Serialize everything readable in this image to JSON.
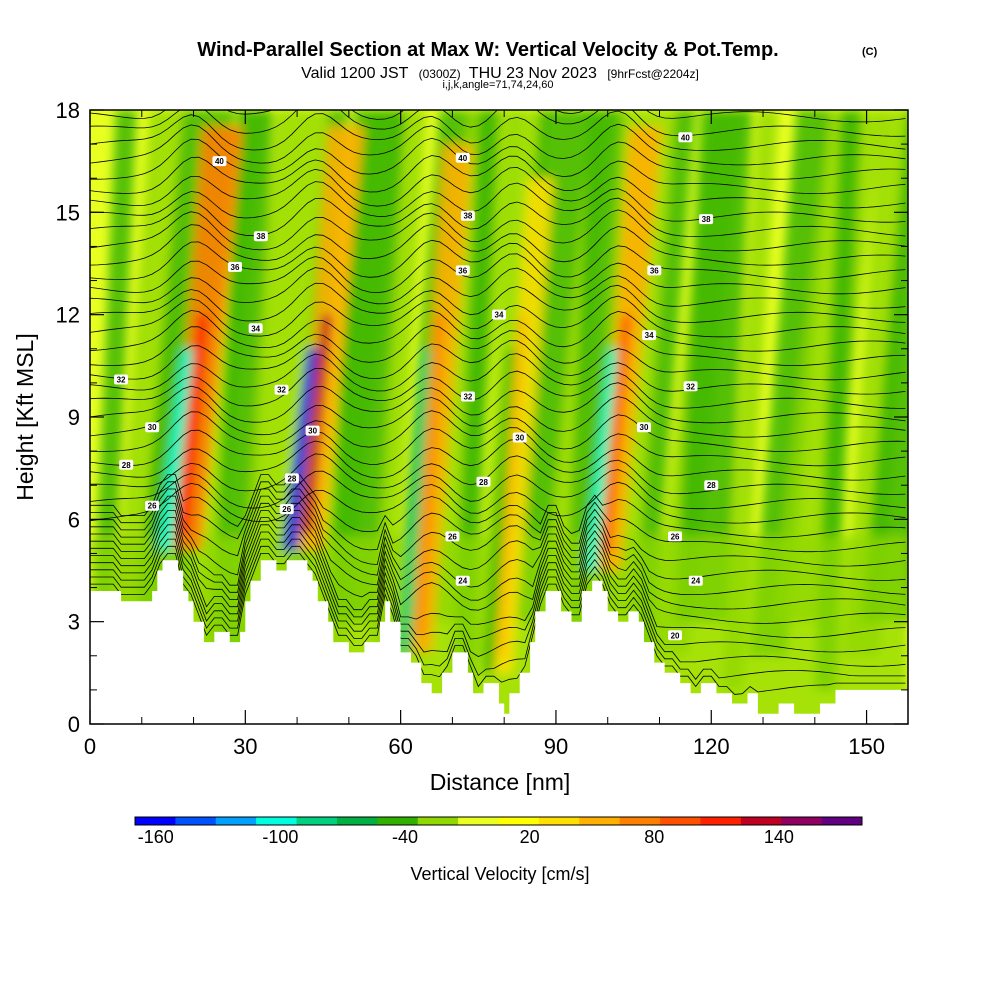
{
  "chart_data": {
    "type": "heatmap",
    "title": "Wind-Parallel Section at Max W: Vertical Velocity & Pot.Temp.",
    "title_mark": "(C)",
    "subtitle_parts": [
      "Valid 1200 JST",
      "(0300Z)",
      "THU 23 Nov 2023",
      "[9hrFcst@2204z]"
    ],
    "subtitle2": "i,j,k,angle=71,74,24,60",
    "xlabel": "Distance [nm]",
    "ylabel": "Height [Kft MSL]",
    "xlim": [
      0,
      158
    ],
    "ylim": [
      0,
      18
    ],
    "x_ticks": [
      "0",
      "30",
      "60",
      "90",
      "120",
      "150"
    ],
    "y_ticks": [
      "0",
      "3",
      "6",
      "9",
      "12",
      "15",
      "18"
    ],
    "x_tick_values": [
      0,
      30,
      60,
      90,
      120,
      150
    ],
    "y_tick_values": [
      0,
      3,
      6,
      9,
      12,
      15,
      18
    ],
    "colorbar": {
      "label": "Vertical Velocity [cm/s]",
      "tick_labels": [
        "-160",
        "-100",
        "-40",
        "20",
        "80",
        "140"
      ],
      "tick_values": [
        -160,
        -100,
        -40,
        20,
        80,
        140
      ],
      "range": [
        -170,
        180
      ],
      "colors": [
        "#0000ff",
        "#0050ff",
        "#00a0ff",
        "#00ffe0",
        "#00d080",
        "#00b040",
        "#30b000",
        "#90d800",
        "#e8ff20",
        "#ffff00",
        "#ffe000",
        "#ffb000",
        "#ff8000",
        "#ff5000",
        "#ff2000",
        "#c00020",
        "#900060",
        "#600080"
      ]
    },
    "terrain": [
      [
        0,
        3.9
      ],
      [
        6,
        3.9
      ],
      [
        6,
        3.6
      ],
      [
        12,
        3.6
      ],
      [
        12,
        3.9
      ],
      [
        13,
        3.9
      ],
      [
        13,
        4.5
      ],
      [
        14,
        4.5
      ],
      [
        14,
        4.8
      ],
      [
        17,
        4.8
      ],
      [
        17,
        4.5
      ],
      [
        18,
        4.5
      ],
      [
        18,
        3.9
      ],
      [
        19,
        3.9
      ],
      [
        19,
        3.6
      ],
      [
        20,
        3.6
      ],
      [
        20,
        3.0
      ],
      [
        22,
        3.0
      ],
      [
        22,
        2.4
      ],
      [
        24,
        2.4
      ],
      [
        24,
        2.7
      ],
      [
        27,
        2.7
      ],
      [
        27,
        2.4
      ],
      [
        29,
        2.4
      ],
      [
        29,
        2.7
      ],
      [
        30,
        2.7
      ],
      [
        30,
        3.6
      ],
      [
        31,
        3.6
      ],
      [
        31,
        4.2
      ],
      [
        33,
        4.2
      ],
      [
        33,
        4.8
      ],
      [
        36,
        4.8
      ],
      [
        36,
        4.5
      ],
      [
        38,
        4.5
      ],
      [
        38,
        4.8
      ],
      [
        42,
        4.8
      ],
      [
        42,
        4.5
      ],
      [
        43,
        4.5
      ],
      [
        43,
        4.2
      ],
      [
        44,
        4.2
      ],
      [
        44,
        3.6
      ],
      [
        46,
        3.6
      ],
      [
        46,
        3.0
      ],
      [
        47,
        3.0
      ],
      [
        47,
        2.4
      ],
      [
        50,
        2.4
      ],
      [
        50,
        2.1
      ],
      [
        53,
        2.1
      ],
      [
        53,
        2.4
      ],
      [
        56,
        2.4
      ],
      [
        56,
        3.0
      ],
      [
        57,
        3.0
      ],
      [
        57,
        3.6
      ],
      [
        58,
        3.6
      ],
      [
        58,
        3.0
      ],
      [
        60,
        3.0
      ],
      [
        60,
        2.1
      ],
      [
        62,
        2.1
      ],
      [
        62,
        1.8
      ],
      [
        64,
        1.8
      ],
      [
        64,
        1.2
      ],
      [
        66,
        1.2
      ],
      [
        66,
        0.9
      ],
      [
        68,
        0.9
      ],
      [
        68,
        1.5
      ],
      [
        70,
        1.5
      ],
      [
        70,
        2.1
      ],
      [
        73,
        2.1
      ],
      [
        73,
        1.5
      ],
      [
        74,
        1.5
      ],
      [
        74,
        0.9
      ],
      [
        76,
        0.9
      ],
      [
        76,
        1.2
      ],
      [
        79,
        1.2
      ],
      [
        79,
        0.6
      ],
      [
        80,
        0.6
      ],
      [
        80,
        0.3
      ],
      [
        81,
        0.3
      ],
      [
        81,
        0.9
      ],
      [
        83,
        0.9
      ],
      [
        83,
        1.5
      ],
      [
        85,
        1.5
      ],
      [
        85,
        2.4
      ],
      [
        86,
        2.4
      ],
      [
        86,
        3.3
      ],
      [
        88,
        3.3
      ],
      [
        88,
        3.9
      ],
      [
        91,
        3.9
      ],
      [
        91,
        3.3
      ],
      [
        93,
        3.3
      ],
      [
        93,
        3.0
      ],
      [
        95,
        3.0
      ],
      [
        95,
        3.9
      ],
      [
        97,
        3.9
      ],
      [
        97,
        4.2
      ],
      [
        99,
        4.2
      ],
      [
        99,
        3.9
      ],
      [
        100,
        3.9
      ],
      [
        100,
        3.3
      ],
      [
        102,
        3.3
      ],
      [
        102,
        3.0
      ],
      [
        104,
        3.0
      ],
      [
        104,
        3.3
      ],
      [
        106,
        3.3
      ],
      [
        106,
        3.0
      ],
      [
        107,
        3.0
      ],
      [
        107,
        2.4
      ],
      [
        109,
        2.4
      ],
      [
        109,
        1.8
      ],
      [
        111,
        1.8
      ],
      [
        111,
        1.5
      ],
      [
        114,
        1.5
      ],
      [
        114,
        1.2
      ],
      [
        116,
        1.2
      ],
      [
        116,
        0.9
      ],
      [
        118,
        0.9
      ],
      [
        118,
        1.2
      ],
      [
        121,
        1.2
      ],
      [
        121,
        0.9
      ],
      [
        124,
        0.9
      ],
      [
        124,
        0.6
      ],
      [
        127,
        0.6
      ],
      [
        127,
        0.9
      ],
      [
        129,
        0.9
      ],
      [
        129,
        0.3
      ],
      [
        133,
        0.3
      ],
      [
        133,
        0.6
      ],
      [
        136,
        0.6
      ],
      [
        136,
        0.3
      ],
      [
        141,
        0.3
      ],
      [
        141,
        0.6
      ],
      [
        144,
        0.6
      ],
      [
        144,
        1.0
      ],
      [
        158,
        1.0
      ],
      [
        158,
        0
      ]
    ],
    "contour_labels": [
      {
        "text": "40",
        "x": 25,
        "y": 16.5
      },
      {
        "text": "40",
        "x": 72,
        "y": 16.6
      },
      {
        "text": "40",
        "x": 115,
        "y": 17.2
      },
      {
        "text": "38",
        "x": 33,
        "y": 14.3
      },
      {
        "text": "38",
        "x": 73,
        "y": 14.9
      },
      {
        "text": "38",
        "x": 119,
        "y": 14.8
      },
      {
        "text": "36",
        "x": 28,
        "y": 13.4
      },
      {
        "text": "36",
        "x": 72,
        "y": 13.3
      },
      {
        "text": "36",
        "x": 109,
        "y": 13.3
      },
      {
        "text": "34",
        "x": 32,
        "y": 11.6
      },
      {
        "text": "34",
        "x": 79,
        "y": 12.0
      },
      {
        "text": "34",
        "x": 108,
        "y": 11.4
      },
      {
        "text": "32",
        "x": 6,
        "y": 10.1
      },
      {
        "text": "32",
        "x": 37,
        "y": 9.8
      },
      {
        "text": "32",
        "x": 73,
        "y": 9.6
      },
      {
        "text": "32",
        "x": 116,
        "y": 9.9
      },
      {
        "text": "30",
        "x": 12,
        "y": 8.7
      },
      {
        "text": "30",
        "x": 43,
        "y": 8.6
      },
      {
        "text": "30",
        "x": 83,
        "y": 8.4
      },
      {
        "text": "30",
        "x": 107,
        "y": 8.7
      },
      {
        "text": "28",
        "x": 7,
        "y": 7.6
      },
      {
        "text": "28",
        "x": 39,
        "y": 7.2
      },
      {
        "text": "28",
        "x": 76,
        "y": 7.1
      },
      {
        "text": "28",
        "x": 120,
        "y": 7.0
      },
      {
        "text": "26",
        "x": 12,
        "y": 6.4
      },
      {
        "text": "26",
        "x": 38,
        "y": 6.3
      },
      {
        "text": "26",
        "x": 70,
        "y": 5.5
      },
      {
        "text": "26",
        "x": 113,
        "y": 5.5
      },
      {
        "text": "24",
        "x": 72,
        "y": 4.2
      },
      {
        "text": "24",
        "x": 117,
        "y": 4.2
      },
      {
        "text": "20",
        "x": 113,
        "y": 2.6
      }
    ]
  }
}
